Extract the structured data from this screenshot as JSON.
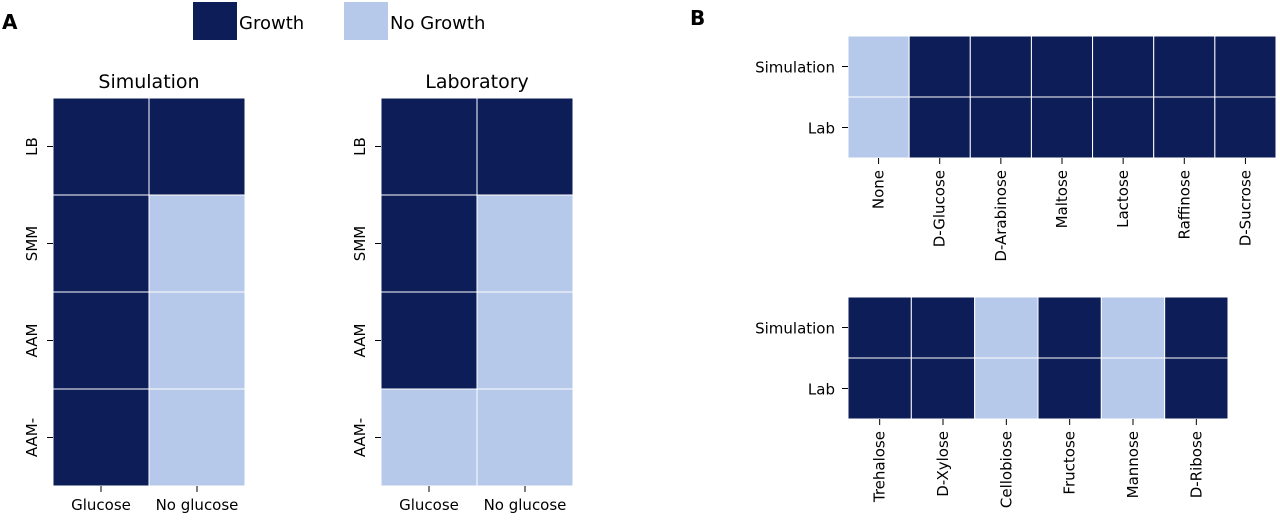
{
  "panel_labels": {
    "a": "A",
    "b": "B"
  },
  "legend": {
    "growth": {
      "label": "Growth",
      "color": "#0c1d57"
    },
    "no_growth": {
      "label": "No Growth",
      "color": "#b7c9ea"
    }
  },
  "chart_data": [
    {
      "type": "heatmap",
      "title": "Simulation",
      "columns": [
        "Glucose",
        "No glucose"
      ],
      "rows": [
        "LB",
        "SMM",
        "AAM",
        "AAM-"
      ],
      "values": [
        [
          1,
          1
        ],
        [
          1,
          0
        ],
        [
          1,
          0
        ],
        [
          1,
          0
        ]
      ]
    },
    {
      "type": "heatmap",
      "title": "Laboratory",
      "columns": [
        "Glucose",
        "No glucose"
      ],
      "rows": [
        "LB",
        "SMM",
        "AAM",
        "AAM-"
      ],
      "values": [
        [
          1,
          1
        ],
        [
          1,
          0
        ],
        [
          1,
          0
        ],
        [
          0,
          0
        ]
      ]
    },
    {
      "type": "heatmap",
      "title": "",
      "columns": [
        "None",
        "D-Glucose",
        "D-Arabinose",
        "Maltose",
        "Lactose",
        "Raffinose",
        "D-Sucrose"
      ],
      "rows": [
        "Simulation",
        "Lab"
      ],
      "values": [
        [
          0,
          1,
          1,
          1,
          1,
          1,
          1
        ],
        [
          0,
          1,
          1,
          1,
          1,
          1,
          1
        ]
      ]
    },
    {
      "type": "heatmap",
      "title": "",
      "columns": [
        "Trehalose",
        "D-Xylose",
        "Cellobiose",
        "Fructose",
        "Mannose",
        "D-Ribose"
      ],
      "rows": [
        "Simulation",
        "Lab"
      ],
      "values": [
        [
          1,
          1,
          0,
          1,
          0,
          1
        ],
        [
          1,
          1,
          0,
          1,
          0,
          1
        ]
      ]
    }
  ]
}
